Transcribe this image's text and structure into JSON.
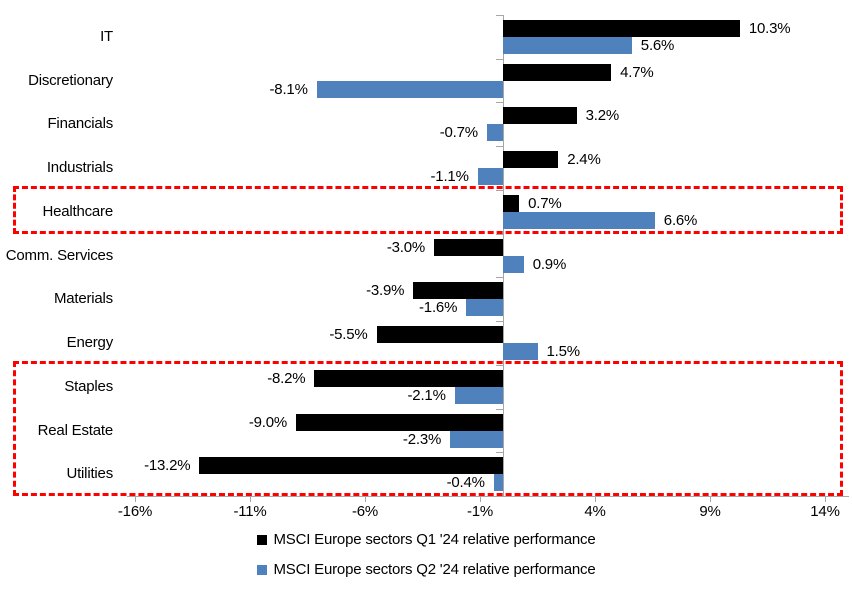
{
  "chart_data": {
    "type": "bar",
    "orientation": "horizontal",
    "title": "",
    "xlabel": "",
    "ylabel": "",
    "xlim": [
      -16.5,
      15
    ],
    "grid": false,
    "legend_position": "bottom-center",
    "categories": [
      "IT",
      "Discretionary",
      "Financials",
      "Industrials",
      "Healthcare",
      "Comm. Services",
      "Materials",
      "Energy",
      "Staples",
      "Real Estate",
      "Utilities"
    ],
    "series": [
      {
        "name": "MSCI Europe sectors Q1 '24 relative performance",
        "color": "#000000",
        "values": [
          10.3,
          4.7,
          3.2,
          2.4,
          0.7,
          -3.0,
          -3.9,
          -5.5,
          -8.2,
          -9.0,
          -13.2
        ],
        "labels": [
          "10.3%",
          "4.7%",
          "3.2%",
          "2.4%",
          "0.7%",
          "-3.0%",
          "-3.9%",
          "-5.5%",
          "-8.2%",
          "-9.0%",
          "-13.2%"
        ]
      },
      {
        "name": "MSCI Europe sectors Q2 '24 relative performance",
        "color": "#4F81BD",
        "values": [
          5.6,
          -8.1,
          -0.7,
          -1.1,
          6.6,
          0.9,
          -1.6,
          1.5,
          -2.1,
          -2.3,
          -0.4
        ],
        "labels": [
          "5.6%",
          "-8.1%",
          "-0.7%",
          "-1.1%",
          "6.6%",
          "0.9%",
          "-1.6%",
          "1.5%",
          "-2.1%",
          "-2.3%",
          "-0.4%"
        ]
      }
    ],
    "x_ticks": [
      "-16%",
      "-11%",
      "-6%",
      "-1%",
      "4%",
      "9%",
      "14%"
    ],
    "x_tick_values": [
      -16,
      -11,
      -6,
      -1,
      4,
      9,
      14
    ],
    "axis_color": "#A6A6A6",
    "highlight_color": "#FF0000",
    "highlight_boxes": [
      {
        "from": 4,
        "to": 4,
        "categories": [
          "Healthcare"
        ]
      },
      {
        "from": 8,
        "to": 10,
        "categories": [
          "Staples",
          "Real Estate",
          "Utilities"
        ]
      }
    ]
  }
}
